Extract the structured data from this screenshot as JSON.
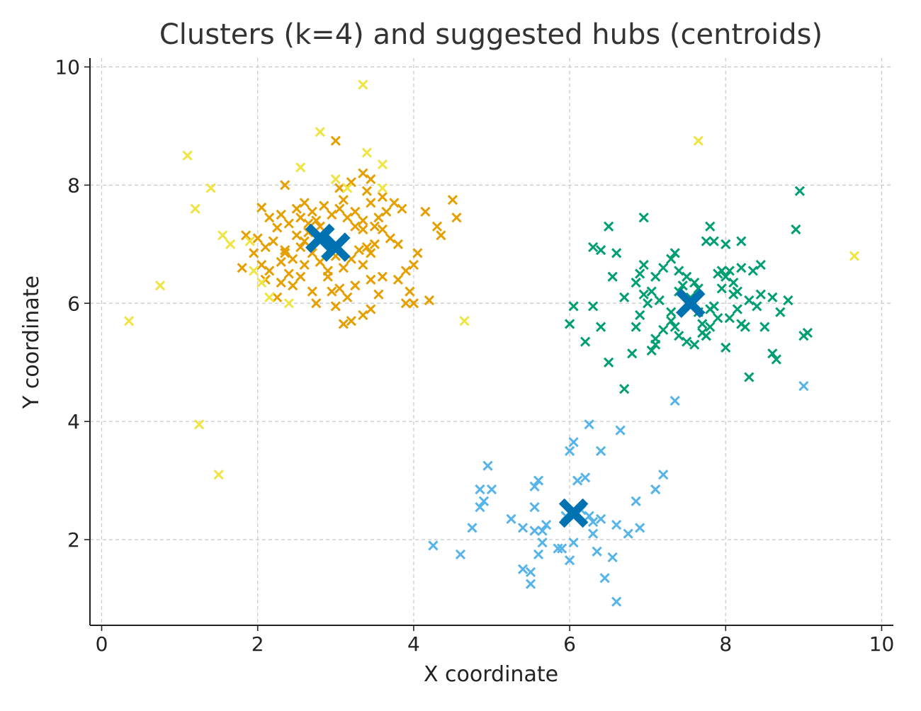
{
  "chart_data": {
    "type": "scatter",
    "title": "Clusters (k=4) and suggested hubs (centroids)",
    "xlabel": "X coordinate",
    "ylabel": "Y coordinate",
    "xlim": [
      -0.15,
      10.15
    ],
    "ylim": [
      0.55,
      10.15
    ],
    "x_ticks": [
      0,
      2,
      4,
      6,
      8,
      10
    ],
    "y_ticks": [
      2,
      4,
      6,
      8,
      10
    ],
    "grid": true,
    "marker": "x",
    "series": [
      {
        "color": "#e69f00",
        "points": [
          [
            2.05,
            7.62
          ],
          [
            2.15,
            7.45
          ],
          [
            2.25,
            7.28
          ],
          [
            2.3,
            7.5
          ],
          [
            2.4,
            7.35
          ],
          [
            2.5,
            7.6
          ],
          [
            2.55,
            7.45
          ],
          [
            2.6,
            7.7
          ],
          [
            2.7,
            7.55
          ],
          [
            2.75,
            7.4
          ],
          [
            2.85,
            7.65
          ],
          [
            2.95,
            7.5
          ],
          [
            3.05,
            7.6
          ],
          [
            3.15,
            7.45
          ],
          [
            3.25,
            7.55
          ],
          [
            3.35,
            7.4
          ],
          [
            3.45,
            7.7
          ],
          [
            3.1,
            7.75
          ],
          [
            2.8,
            7.3
          ],
          [
            2.65,
            7.2
          ],
          [
            2.0,
            7.1
          ],
          [
            1.95,
            6.85
          ],
          [
            2.1,
            6.95
          ],
          [
            2.2,
            7.05
          ],
          [
            2.35,
            6.9
          ],
          [
            2.45,
            6.75
          ],
          [
            2.55,
            6.95
          ],
          [
            2.6,
            6.65
          ],
          [
            2.7,
            6.85
          ],
          [
            2.8,
            6.7
          ],
          [
            2.9,
            6.55
          ],
          [
            3.0,
            6.8
          ],
          [
            3.1,
            6.6
          ],
          [
            3.2,
            6.75
          ],
          [
            3.3,
            6.9
          ],
          [
            3.35,
            6.65
          ],
          [
            3.45,
            6.85
          ],
          [
            2.4,
            6.5
          ],
          [
            2.3,
            6.35
          ],
          [
            2.15,
            6.55
          ],
          [
            2.25,
            6.1
          ],
          [
            2.45,
            6.3
          ],
          [
            2.55,
            6.45
          ],
          [
            2.7,
            6.2
          ],
          [
            2.75,
            6.0
          ],
          [
            2.9,
            6.45
          ],
          [
            2.95,
            6.2
          ],
          [
            3.05,
            6.25
          ],
          [
            3.15,
            6.1
          ],
          [
            3.25,
            6.3
          ],
          [
            3.0,
            5.95
          ],
          [
            3.1,
            5.65
          ],
          [
            3.2,
            5.7
          ],
          [
            3.45,
            6.4
          ],
          [
            3.55,
            6.15
          ],
          [
            3.45,
            5.9
          ],
          [
            3.35,
            5.8
          ],
          [
            3.6,
            6.45
          ],
          [
            3.8,
            6.4
          ],
          [
            3.9,
            6.55
          ],
          [
            4.0,
            6.65
          ],
          [
            4.05,
            6.85
          ],
          [
            4.2,
            6.05
          ],
          [
            4.0,
            6.0
          ],
          [
            3.95,
            6.2
          ],
          [
            3.7,
            7.1
          ],
          [
            3.6,
            7.25
          ],
          [
            3.55,
            7.45
          ],
          [
            3.65,
            7.55
          ],
          [
            3.75,
            7.7
          ],
          [
            3.85,
            7.6
          ],
          [
            3.8,
            7.0
          ],
          [
            3.5,
            7.0
          ],
          [
            3.4,
            6.95
          ],
          [
            3.35,
            7.25
          ],
          [
            3.25,
            7.3
          ],
          [
            4.15,
            7.55
          ],
          [
            4.3,
            7.3
          ],
          [
            4.35,
            7.15
          ],
          [
            4.5,
            7.75
          ],
          [
            4.55,
            7.45
          ],
          [
            1.8,
            6.6
          ],
          [
            1.85,
            7.15
          ],
          [
            2.05,
            6.65
          ],
          [
            2.1,
            6.4
          ],
          [
            2.3,
            6.7
          ],
          [
            2.5,
            7.15
          ],
          [
            2.65,
            7.35
          ],
          [
            3.05,
            7.95
          ],
          [
            3.2,
            8.05
          ],
          [
            3.35,
            8.2
          ],
          [
            3.4,
            7.9
          ],
          [
            3.5,
            7.3
          ],
          [
            2.35,
            8.0
          ],
          [
            3.0,
            8.75
          ],
          [
            3.45,
            8.1
          ],
          [
            3.6,
            7.8
          ],
          [
            3.9,
            6.0
          ],
          [
            2.35,
            6.85
          ],
          [
            2.6,
            7.05
          ]
        ]
      },
      {
        "color": "#009e73",
        "points": [
          [
            6.3,
            6.95
          ],
          [
            6.4,
            6.9
          ],
          [
            6.5,
            7.3
          ],
          [
            6.55,
            6.45
          ],
          [
            6.7,
            6.1
          ],
          [
            6.85,
            6.35
          ],
          [
            6.9,
            6.5
          ],
          [
            6.95,
            6.15
          ],
          [
            7.0,
            6.0
          ],
          [
            7.05,
            6.2
          ],
          [
            7.1,
            6.45
          ],
          [
            7.15,
            6.05
          ],
          [
            7.2,
            6.6
          ],
          [
            7.3,
            6.75
          ],
          [
            7.35,
            6.85
          ],
          [
            7.4,
            6.55
          ],
          [
            7.45,
            6.3
          ],
          [
            7.5,
            6.45
          ],
          [
            7.55,
            6.1
          ],
          [
            7.6,
            6.35
          ],
          [
            7.65,
            5.85
          ],
          [
            7.7,
            5.65
          ],
          [
            7.75,
            5.45
          ],
          [
            7.8,
            5.6
          ],
          [
            7.85,
            5.95
          ],
          [
            7.9,
            5.75
          ],
          [
            7.95,
            6.25
          ],
          [
            8.0,
            6.45
          ],
          [
            8.05,
            6.55
          ],
          [
            8.1,
            6.15
          ],
          [
            8.15,
            5.9
          ],
          [
            8.2,
            5.65
          ],
          [
            8.3,
            6.05
          ],
          [
            8.4,
            5.95
          ],
          [
            8.45,
            6.15
          ],
          [
            8.6,
            6.1
          ],
          [
            8.7,
            5.85
          ],
          [
            8.8,
            6.05
          ],
          [
            8.9,
            7.25
          ],
          [
            8.95,
            7.9
          ],
          [
            8.6,
            5.15
          ],
          [
            8.65,
            5.05
          ],
          [
            9.0,
            5.45
          ],
          [
            9.05,
            5.5
          ],
          [
            8.45,
            6.65
          ],
          [
            8.2,
            7.05
          ],
          [
            8.0,
            7.0
          ],
          [
            7.85,
            7.05
          ],
          [
            7.8,
            7.3
          ],
          [
            7.75,
            7.05
          ],
          [
            7.95,
            6.55
          ],
          [
            8.1,
            6.35
          ],
          [
            8.2,
            6.6
          ],
          [
            8.35,
            6.55
          ],
          [
            8.0,
            5.25
          ],
          [
            7.6,
            5.3
          ],
          [
            7.5,
            5.35
          ],
          [
            7.4,
            5.45
          ],
          [
            7.35,
            5.6
          ],
          [
            7.3,
            5.85
          ],
          [
            7.2,
            5.55
          ],
          [
            7.1,
            5.3
          ],
          [
            7.05,
            5.2
          ],
          [
            6.9,
            5.8
          ],
          [
            6.85,
            5.6
          ],
          [
            6.8,
            5.15
          ],
          [
            6.5,
            5.0
          ],
          [
            6.4,
            5.6
          ],
          [
            6.3,
            5.95
          ],
          [
            6.2,
            5.35
          ],
          [
            6.05,
            5.95
          ],
          [
            6.0,
            5.65
          ],
          [
            6.7,
            4.55
          ],
          [
            7.3,
            5.7
          ],
          [
            7.7,
            5.5
          ],
          [
            7.75,
            5.45
          ],
          [
            8.3,
            4.75
          ],
          [
            8.5,
            5.6
          ],
          [
            8.25,
            5.6
          ],
          [
            8.05,
            5.75
          ],
          [
            7.55,
            6.0
          ],
          [
            7.65,
            6.25
          ],
          [
            7.4,
            6.2
          ],
          [
            6.95,
            6.65
          ],
          [
            6.95,
            7.45
          ],
          [
            6.6,
            6.85
          ],
          [
            7.1,
            5.4
          ],
          [
            7.8,
            5.9
          ],
          [
            7.9,
            6.5
          ],
          [
            8.15,
            6.2
          ]
        ]
      },
      {
        "color": "#56b4e9",
        "points": [
          [
            4.25,
            1.9
          ],
          [
            4.6,
            1.75
          ],
          [
            4.75,
            2.2
          ],
          [
            4.85,
            2.85
          ],
          [
            4.85,
            2.55
          ],
          [
            4.9,
            2.65
          ],
          [
            4.95,
            3.25
          ],
          [
            5.0,
            2.85
          ],
          [
            5.25,
            2.35
          ],
          [
            5.4,
            2.2
          ],
          [
            5.4,
            1.5
          ],
          [
            5.5,
            1.45
          ],
          [
            5.5,
            1.25
          ],
          [
            5.55,
            2.55
          ],
          [
            5.55,
            2.9
          ],
          [
            5.55,
            2.15
          ],
          [
            5.6,
            3.0
          ],
          [
            5.65,
            2.15
          ],
          [
            5.6,
            1.75
          ],
          [
            5.65,
            1.95
          ],
          [
            5.85,
            1.85
          ],
          [
            5.9,
            1.85
          ],
          [
            6.0,
            1.65
          ],
          [
            6.05,
            1.95
          ],
          [
            6.0,
            3.5
          ],
          [
            6.05,
            3.65
          ],
          [
            6.1,
            3.0
          ],
          [
            6.2,
            3.05
          ],
          [
            6.25,
            3.95
          ],
          [
            6.25,
            2.4
          ],
          [
            6.3,
            2.1
          ],
          [
            6.35,
            1.8
          ],
          [
            6.4,
            2.35
          ],
          [
            6.4,
            3.5
          ],
          [
            6.45,
            1.35
          ],
          [
            6.55,
            1.7
          ],
          [
            6.6,
            2.25
          ],
          [
            6.65,
            3.85
          ],
          [
            6.75,
            2.1
          ],
          [
            6.85,
            2.65
          ],
          [
            6.9,
            2.2
          ],
          [
            7.1,
            2.85
          ],
          [
            7.2,
            3.1
          ],
          [
            6.6,
            0.95
          ],
          [
            7.35,
            4.35
          ],
          [
            9.0,
            4.6
          ],
          [
            5.7,
            2.25
          ],
          [
            5.95,
            2.4
          ],
          [
            6.3,
            2.3
          ],
          [
            6.15,
            2.5
          ]
        ]
      },
      {
        "color": "#f0e442",
        "points": [
          [
            0.35,
            5.7
          ],
          [
            0.75,
            6.3
          ],
          [
            1.1,
            8.5
          ],
          [
            1.2,
            7.6
          ],
          [
            1.25,
            3.95
          ],
          [
            1.4,
            7.95
          ],
          [
            1.5,
            3.1
          ],
          [
            1.55,
            7.15
          ],
          [
            1.65,
            7.0
          ],
          [
            1.9,
            7.05
          ],
          [
            1.95,
            6.55
          ],
          [
            2.05,
            6.35
          ],
          [
            2.15,
            6.1
          ],
          [
            2.4,
            6.0
          ],
          [
            2.55,
            8.3
          ],
          [
            2.8,
            8.9
          ],
          [
            3.0,
            8.1
          ],
          [
            3.15,
            7.95
          ],
          [
            3.35,
            9.7
          ],
          [
            3.4,
            8.55
          ],
          [
            3.6,
            8.35
          ],
          [
            3.6,
            7.95
          ],
          [
            4.65,
            5.7
          ],
          [
            7.65,
            8.75
          ],
          [
            9.65,
            6.8
          ]
        ]
      }
    ],
    "centroids": {
      "color": "#0072b2",
      "points": [
        [
          2.8,
          7.1
        ],
        [
          3.0,
          6.95
        ],
        [
          7.55,
          6.0
        ],
        [
          6.05,
          2.45
        ]
      ]
    }
  }
}
